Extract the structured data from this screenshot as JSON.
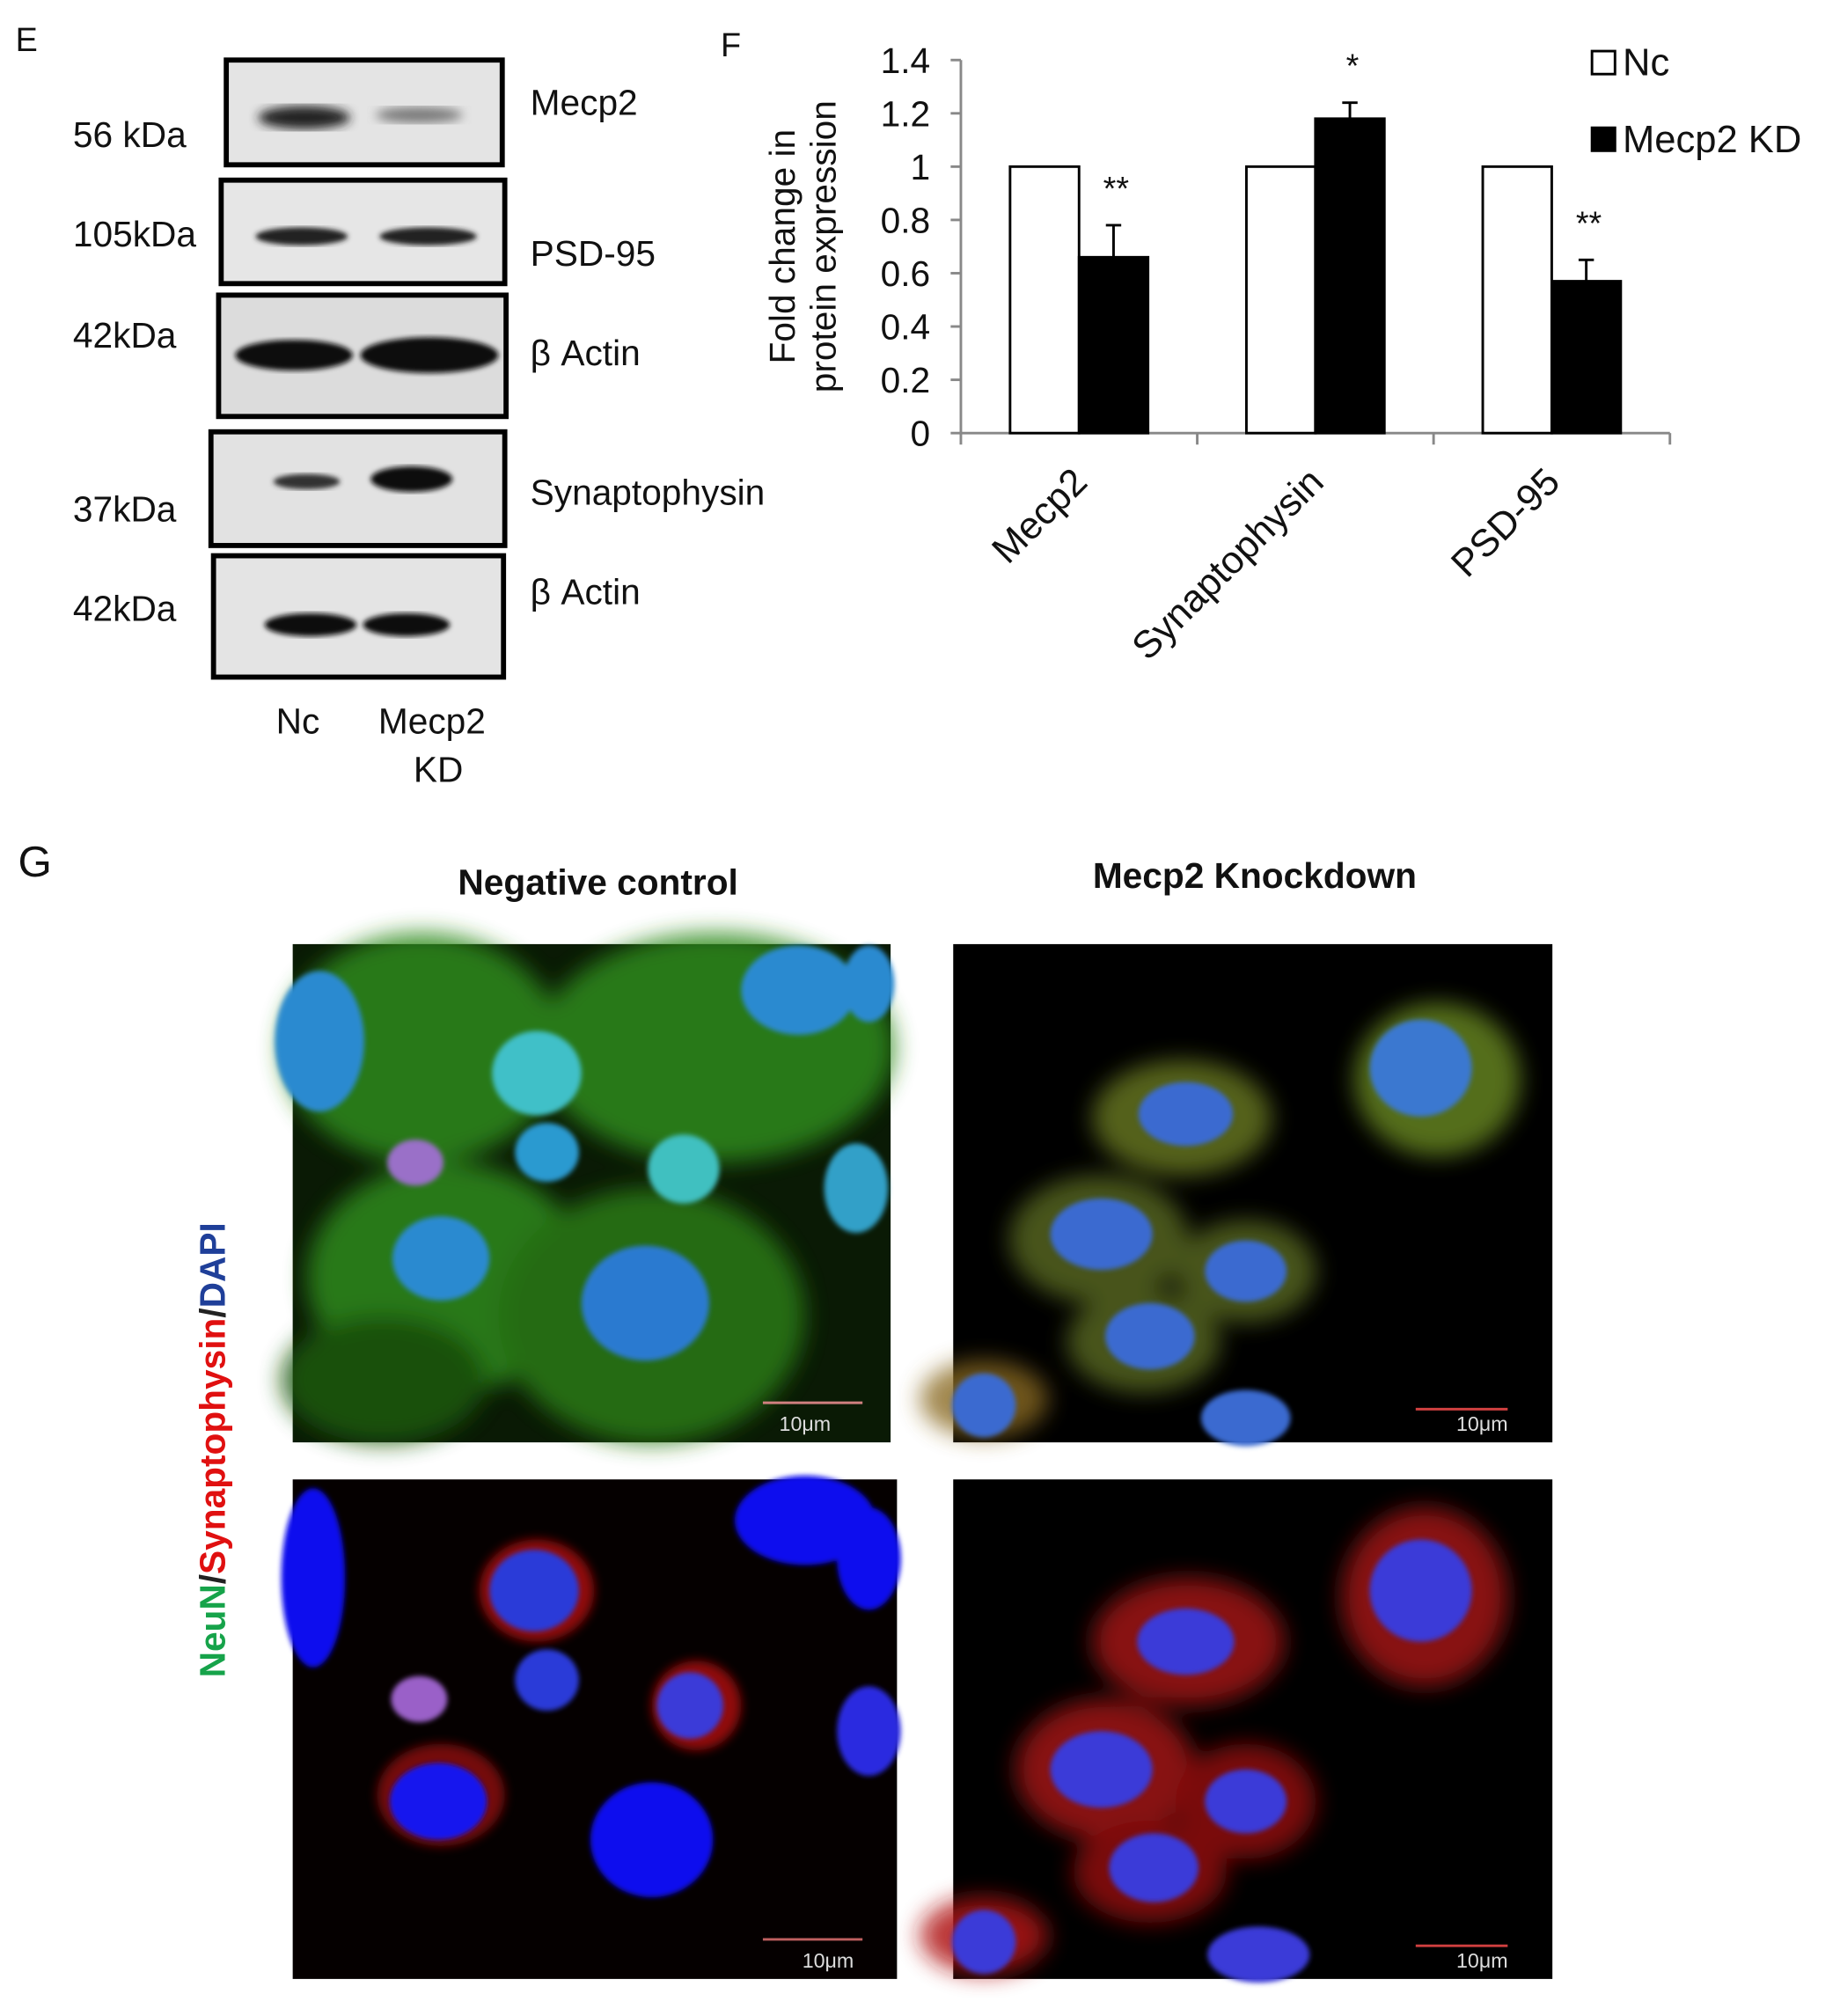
{
  "panel_e": {
    "letter": "E",
    "blots": [
      {
        "size": "56 kDa",
        "protein": "Mecp2"
      },
      {
        "size": "105kDa",
        "protein": "PSD-95"
      },
      {
        "size": "42kDa",
        "protein": "β Actin"
      },
      {
        "size": "37kDa",
        "protein": "Synaptophysin"
      },
      {
        "size": "42kDa",
        "protein": "β Actin"
      }
    ],
    "lanes": [
      "Nc",
      "Mecp2",
      "KD"
    ]
  },
  "chart_data": {
    "type": "bar",
    "letter": "F",
    "y_label": [
      "Fold change in",
      "protein expression"
    ],
    "categories": [
      "Mecp2",
      "Synaptophysin",
      "PSD-95"
    ],
    "series": [
      {
        "name": "Nc",
        "color": "#ffffff",
        "values": [
          1,
          1,
          1
        ]
      },
      {
        "name": "Mecp2 KD",
        "color": "#000000",
        "values": [
          0.66,
          1.18,
          0.57
        ],
        "errors": [
          0.12,
          0.06,
          0.08
        ],
        "annotations": [
          "**",
          "*",
          "**"
        ]
      }
    ],
    "ylim": [
      0,
      1.4
    ],
    "yticks": [
      0,
      0.2,
      0.4,
      0.6,
      0.8,
      1,
      1.2,
      1.4
    ],
    "legend": "top-right"
  },
  "panel_g": {
    "letter": "G",
    "columns": [
      "Negative control",
      "Mecp2 Knockdown"
    ],
    "side_label": [
      "NeuN",
      "/",
      "Synaptophysin",
      "/",
      "DAPI"
    ],
    "scale_bars": [
      "10μm",
      "10μm",
      "10μm",
      "10μm"
    ]
  }
}
